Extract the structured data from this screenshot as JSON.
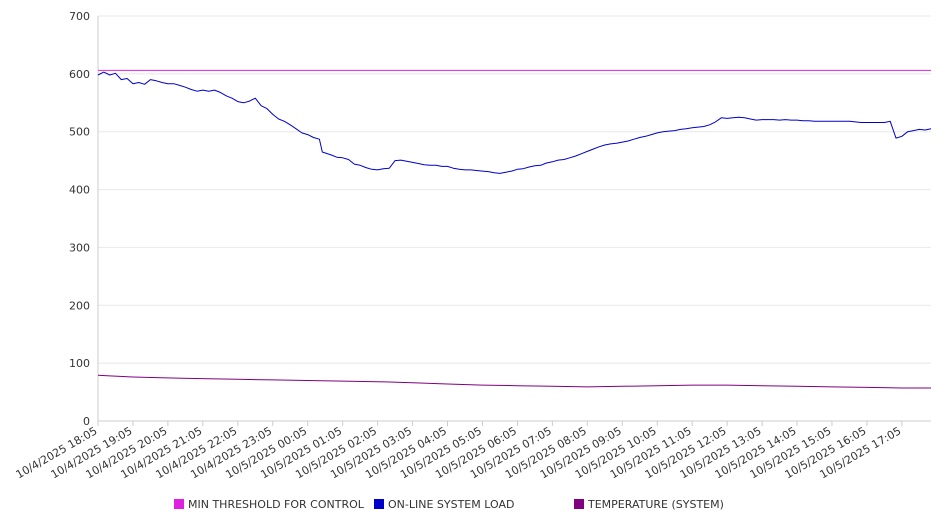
{
  "chart_data": {
    "type": "line",
    "ylim": [
      0,
      700
    ],
    "yticks": [
      0,
      100,
      200,
      300,
      400,
      500,
      600,
      700
    ],
    "xticks": [
      "10/4/2025 18:05",
      "10/4/2025 19:05",
      "10/4/2025 20:05",
      "10/4/2025 21:05",
      "10/4/2025 22:05",
      "10/4/2025 23:05",
      "10/5/2025 00:05",
      "10/5/2025 01:05",
      "10/5/2025 02:05",
      "10/5/2025 03:05",
      "10/5/2025 04:05",
      "10/5/2025 05:05",
      "10/5/2025 06:05",
      "10/5/2025 07:05",
      "10/5/2025 08:05",
      "10/5/2025 09:05",
      "10/5/2025 10:05",
      "10/5/2025 11:05",
      "10/5/2025 12:05",
      "10/5/2025 13:05",
      "10/5/2025 14:05",
      "10/5/2025 15:05",
      "10/5/2025 16:05",
      "10/5/2025 17:05"
    ],
    "grid": true,
    "legend_position": "bottom",
    "series": [
      {
        "name": "MIN THRESHOLD FOR CONTROL",
        "color": "#e020e0",
        "points": [
          [
            "10/4/2025 18:05",
            606
          ],
          [
            "10/5/2025 17:55",
            606
          ]
        ]
      },
      {
        "name": "ON-LINE SYSTEM LOAD",
        "color": "#0000cc",
        "points": [
          [
            "10/4/2025 18:05",
            598
          ],
          [
            "10/4/2025 18:15",
            603
          ],
          [
            "10/4/2025 18:25",
            598
          ],
          [
            "10/4/2025 18:35",
            601
          ],
          [
            "10/4/2025 18:45",
            590
          ],
          [
            "10/4/2025 18:55",
            592
          ],
          [
            "10/4/2025 19:05",
            583
          ],
          [
            "10/4/2025 19:15",
            585
          ],
          [
            "10/4/2025 19:25",
            582
          ],
          [
            "10/4/2025 19:35",
            590
          ],
          [
            "10/4/2025 19:45",
            588
          ],
          [
            "10/4/2025 19:55",
            585
          ],
          [
            "10/4/2025 20:05",
            583
          ],
          [
            "10/4/2025 20:15",
            583
          ],
          [
            "10/4/2025 20:25",
            580
          ],
          [
            "10/4/2025 20:35",
            577
          ],
          [
            "10/4/2025 20:45",
            573
          ],
          [
            "10/4/2025 20:55",
            570
          ],
          [
            "10/4/2025 21:05",
            572
          ],
          [
            "10/4/2025 21:15",
            570
          ],
          [
            "10/4/2025 21:25",
            572
          ],
          [
            "10/4/2025 21:35",
            568
          ],
          [
            "10/4/2025 21:45",
            562
          ],
          [
            "10/4/2025 21:55",
            558
          ],
          [
            "10/4/2025 22:05",
            552
          ],
          [
            "10/4/2025 22:15",
            550
          ],
          [
            "10/4/2025 22:25",
            553
          ],
          [
            "10/4/2025 22:35",
            558
          ],
          [
            "10/4/2025 22:45",
            545
          ],
          [
            "10/4/2025 22:55",
            540
          ],
          [
            "10/4/2025 23:05",
            530
          ],
          [
            "10/4/2025 23:15",
            522
          ],
          [
            "10/4/2025 23:25",
            518
          ],
          [
            "10/4/2025 23:35",
            512
          ],
          [
            "10/4/2025 23:45",
            505
          ],
          [
            "10/4/2025 23:55",
            498
          ],
          [
            "10/5/2025 00:05",
            495
          ],
          [
            "10/5/2025 00:15",
            490
          ],
          [
            "10/5/2025 00:25",
            487
          ],
          [
            "10/5/2025 00:30",
            465
          ],
          [
            "10/5/2025 00:45",
            460
          ],
          [
            "10/5/2025 00:55",
            456
          ],
          [
            "10/5/2025 01:05",
            455
          ],
          [
            "10/5/2025 01:15",
            452
          ],
          [
            "10/5/2025 01:25",
            444
          ],
          [
            "10/5/2025 01:35",
            442
          ],
          [
            "10/5/2025 01:45",
            438
          ],
          [
            "10/5/2025 01:55",
            435
          ],
          [
            "10/5/2025 02:05",
            434
          ],
          [
            "10/5/2025 02:15",
            436
          ],
          [
            "10/5/2025 02:25",
            437
          ],
          [
            "10/5/2025 02:35",
            450
          ],
          [
            "10/5/2025 02:45",
            451
          ],
          [
            "10/5/2025 02:55",
            449
          ],
          [
            "10/5/2025 03:05",
            447
          ],
          [
            "10/5/2025 03:15",
            445
          ],
          [
            "10/5/2025 03:25",
            443
          ],
          [
            "10/5/2025 03:35",
            442
          ],
          [
            "10/5/2025 03:45",
            442
          ],
          [
            "10/5/2025 03:55",
            440
          ],
          [
            "10/5/2025 04:05",
            440
          ],
          [
            "10/5/2025 04:15",
            437
          ],
          [
            "10/5/2025 04:25",
            435
          ],
          [
            "10/5/2025 04:35",
            434
          ],
          [
            "10/5/2025 04:45",
            434
          ],
          [
            "10/5/2025 04:55",
            433
          ],
          [
            "10/5/2025 05:05",
            432
          ],
          [
            "10/5/2025 05:15",
            431
          ],
          [
            "10/5/2025 05:25",
            429
          ],
          [
            "10/5/2025 05:35",
            428
          ],
          [
            "10/5/2025 05:45",
            430
          ],
          [
            "10/5/2025 05:55",
            432
          ],
          [
            "10/5/2025 06:05",
            435
          ],
          [
            "10/5/2025 06:15",
            436
          ],
          [
            "10/5/2025 06:25",
            439
          ],
          [
            "10/5/2025 06:35",
            441
          ],
          [
            "10/5/2025 06:45",
            442
          ],
          [
            "10/5/2025 06:55",
            446
          ],
          [
            "10/5/2025 07:05",
            448
          ],
          [
            "10/5/2025 07:15",
            451
          ],
          [
            "10/5/2025 07:25",
            452
          ],
          [
            "10/5/2025 07:35",
            455
          ],
          [
            "10/5/2025 07:45",
            458
          ],
          [
            "10/5/2025 07:55",
            462
          ],
          [
            "10/5/2025 08:05",
            466
          ],
          [
            "10/5/2025 08:15",
            470
          ],
          [
            "10/5/2025 08:25",
            474
          ],
          [
            "10/5/2025 08:35",
            477
          ],
          [
            "10/5/2025 08:45",
            479
          ],
          [
            "10/5/2025 08:55",
            480
          ],
          [
            "10/5/2025 09:05",
            482
          ],
          [
            "10/5/2025 09:15",
            484
          ],
          [
            "10/5/2025 09:25",
            487
          ],
          [
            "10/5/2025 09:35",
            490
          ],
          [
            "10/5/2025 09:45",
            492
          ],
          [
            "10/5/2025 09:55",
            495
          ],
          [
            "10/5/2025 10:05",
            498
          ],
          [
            "10/5/2025 10:15",
            500
          ],
          [
            "10/5/2025 10:25",
            501
          ],
          [
            "10/5/2025 10:35",
            502
          ],
          [
            "10/5/2025 10:45",
            504
          ],
          [
            "10/5/2025 10:55",
            505
          ],
          [
            "10/5/2025 11:05",
            507
          ],
          [
            "10/5/2025 11:15",
            508
          ],
          [
            "10/5/2025 11:25",
            509
          ],
          [
            "10/5/2025 11:35",
            512
          ],
          [
            "10/5/2025 11:45",
            517
          ],
          [
            "10/5/2025 11:55",
            524
          ],
          [
            "10/5/2025 12:05",
            523
          ],
          [
            "10/5/2025 12:15",
            524
          ],
          [
            "10/5/2025 12:25",
            525
          ],
          [
            "10/5/2025 12:35",
            524
          ],
          [
            "10/5/2025 12:45",
            522
          ],
          [
            "10/5/2025 12:55",
            520
          ],
          [
            "10/5/2025 13:05",
            521
          ],
          [
            "10/5/2025 13:15",
            521
          ],
          [
            "10/5/2025 13:25",
            521
          ],
          [
            "10/5/2025 13:35",
            520
          ],
          [
            "10/5/2025 13:45",
            521
          ],
          [
            "10/5/2025 13:55",
            520
          ],
          [
            "10/5/2025 14:05",
            520
          ],
          [
            "10/5/2025 14:15",
            519
          ],
          [
            "10/5/2025 14:25",
            519
          ],
          [
            "10/5/2025 14:35",
            518
          ],
          [
            "10/5/2025 14:45",
            518
          ],
          [
            "10/5/2025 14:55",
            518
          ],
          [
            "10/5/2025 15:05",
            518
          ],
          [
            "10/5/2025 15:15",
            518
          ],
          [
            "10/5/2025 15:25",
            518
          ],
          [
            "10/5/2025 15:35",
            518
          ],
          [
            "10/5/2025 15:45",
            517
          ],
          [
            "10/5/2025 15:55",
            516
          ],
          [
            "10/5/2025 16:05",
            516
          ],
          [
            "10/5/2025 16:15",
            516
          ],
          [
            "10/5/2025 16:25",
            516
          ],
          [
            "10/5/2025 16:35",
            516
          ],
          [
            "10/5/2025 16:45",
            518
          ],
          [
            "10/5/2025 16:55",
            489
          ],
          [
            "10/5/2025 17:05",
            492
          ],
          [
            "10/5/2025 17:15",
            500
          ],
          [
            "10/5/2025 17:25",
            502
          ],
          [
            "10/5/2025 17:35",
            504
          ],
          [
            "10/5/2025 17:45",
            503
          ],
          [
            "10/5/2025 17:55",
            505
          ]
        ]
      },
      {
        "name": "TEMPERATURE (SYSTEM)",
        "color": "#800080",
        "points": [
          [
            "10/4/2025 18:05",
            79
          ],
          [
            "10/4/2025 18:25",
            78
          ],
          [
            "10/4/2025 19:05",
            76
          ],
          [
            "10/4/2025 19:45",
            75
          ],
          [
            "10/4/2025 20:30",
            74
          ],
          [
            "10/4/2025 21:15",
            73
          ],
          [
            "10/4/2025 22:05",
            72
          ],
          [
            "10/4/2025 23:05",
            71
          ],
          [
            "10/5/2025 00:05",
            70
          ],
          [
            "10/5/2025 01:05",
            69
          ],
          [
            "10/5/2025 02:05",
            68
          ],
          [
            "10/5/2025 03:05",
            66
          ],
          [
            "10/5/2025 04:05",
            64
          ],
          [
            "10/5/2025 05:05",
            62
          ],
          [
            "10/5/2025 06:05",
            61
          ],
          [
            "10/5/2025 07:05",
            60
          ],
          [
            "10/5/2025 08:05",
            59
          ],
          [
            "10/5/2025 09:05",
            60
          ],
          [
            "10/5/2025 10:05",
            61
          ],
          [
            "10/5/2025 11:05",
            62
          ],
          [
            "10/5/2025 12:05",
            62
          ],
          [
            "10/5/2025 13:05",
            61
          ],
          [
            "10/5/2025 14:05",
            60
          ],
          [
            "10/5/2025 15:05",
            59
          ],
          [
            "10/5/2025 16:05",
            58
          ],
          [
            "10/5/2025 17:05",
            57
          ],
          [
            "10/5/2025 17:55",
            57
          ]
        ]
      }
    ]
  }
}
